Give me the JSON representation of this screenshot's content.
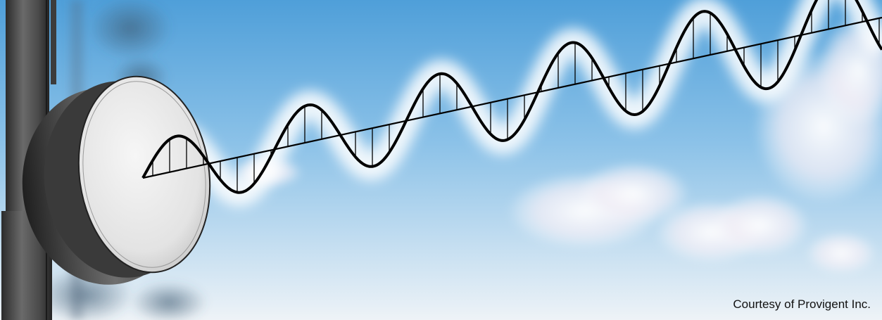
{
  "credit": "Courtesy of Provigent Inc.",
  "colors": {
    "sky_top": "#5aa6dc",
    "sky_bottom": "#e8f0f6",
    "wave": "#000000",
    "dish_face": "#eeeeee",
    "pole": "#555555"
  },
  "illustration": {
    "subject": "microwave-dish-antenna",
    "signal": "sine-wave",
    "background": "sky-with-clouds"
  }
}
